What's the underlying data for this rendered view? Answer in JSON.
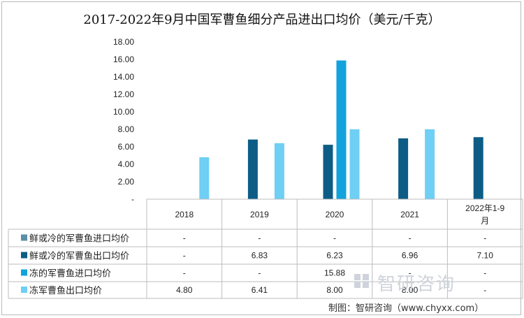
{
  "chart_data": {
    "type": "bar",
    "title": "2017-2022年9月中国军曹鱼细分产品进出口均价（美元/千克）",
    "categories": [
      "2018",
      "2019",
      "2020",
      "2021",
      "2022年1-9月"
    ],
    "y_ticks": [
      "-",
      "2.00",
      "4.00",
      "6.00",
      "8.00",
      "10.00",
      "12.00",
      "14.00",
      "16.00",
      "18.00"
    ],
    "ylim": [
      0,
      18
    ],
    "grid": false,
    "legend": "data-table",
    "series": [
      {
        "name": "鲜或冷的军曹鱼进口均价",
        "color": "#5b8fa8",
        "values": [
          null,
          null,
          null,
          null,
          null
        ],
        "labels": [
          "-",
          "-",
          "-",
          "-",
          "-"
        ]
      },
      {
        "name": "鲜或冷的军曹鱼出口均价",
        "color": "#0d5c85",
        "values": [
          null,
          6.83,
          6.23,
          6.96,
          7.1
        ],
        "labels": [
          "-",
          "6.83",
          "6.23",
          "6.96",
          "7.10"
        ]
      },
      {
        "name": "冻的军曹鱼进口均价",
        "color": "#12a3dc",
        "values": [
          null,
          null,
          15.88,
          null,
          null
        ],
        "labels": [
          "-",
          "-",
          "15.88",
          "-",
          "-"
        ]
      },
      {
        "name": "冻军曹鱼出口均价",
        "color": "#6fcff5",
        "values": [
          4.8,
          6.41,
          8.0,
          8.0,
          null
        ],
        "labels": [
          "4.80",
          "6.41",
          "8.00",
          "8.00",
          "-"
        ]
      }
    ]
  },
  "watermark": "智研咨询",
  "source": "制图：智研咨询（www.chyxx.com）"
}
